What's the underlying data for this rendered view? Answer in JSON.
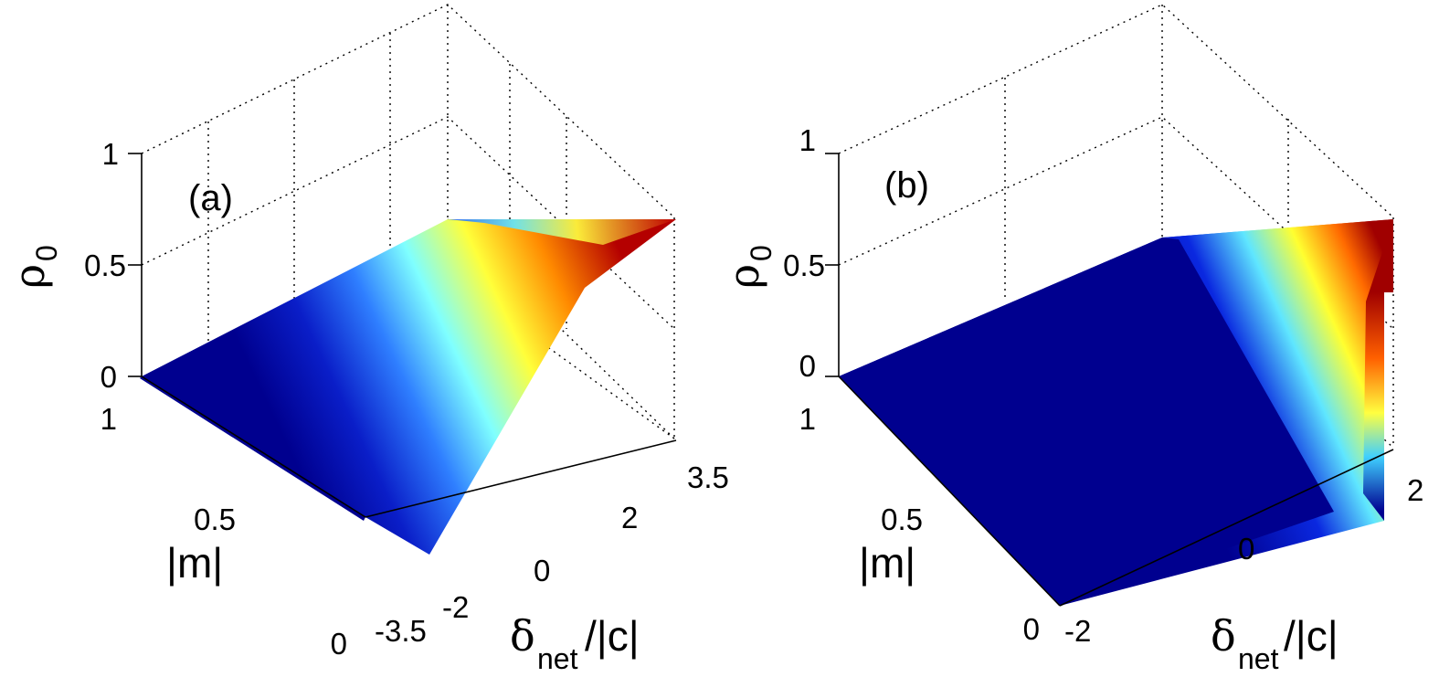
{
  "chart_data": [
    {
      "type": "surface",
      "panel_label": "(a)",
      "zlabel": {
        "symbol": "ρ",
        "sub": "0"
      },
      "ylabel": "|m|",
      "xlabel": {
        "symbol": "δ",
        "sub": "net",
        "rest": "/|c|"
      },
      "z_ticks": [
        "0",
        "0.5",
        "1"
      ],
      "y_ticks": [
        "0",
        "0.5",
        "1"
      ],
      "x_ticks": [
        "-3.5",
        "-2",
        "0",
        "2",
        "3.5"
      ],
      "xlim": [
        -3.5,
        3.5
      ],
      "ylim": [
        0,
        1
      ],
      "zlim": [
        0,
        1
      ],
      "colormap": "jet",
      "surface_x_start": -2,
      "grid": true
    },
    {
      "type": "surface",
      "panel_label": "(b)",
      "zlabel": {
        "symbol": "ρ",
        "sub": "0"
      },
      "ylabel": "|m|",
      "xlabel": {
        "symbol": "δ",
        "sub": "net",
        "rest": "/|c|"
      },
      "z_ticks": [
        "0",
        "0.5",
        "1"
      ],
      "y_ticks": [
        "0",
        "0.5",
        "1"
      ],
      "x_ticks": [
        "-2",
        "0",
        "2"
      ],
      "xlim": [
        -2,
        2
      ],
      "ylim": [
        0,
        1
      ],
      "zlim": [
        0,
        1
      ],
      "colormap": "jet",
      "surface_x_end": 0,
      "grid": true
    }
  ]
}
